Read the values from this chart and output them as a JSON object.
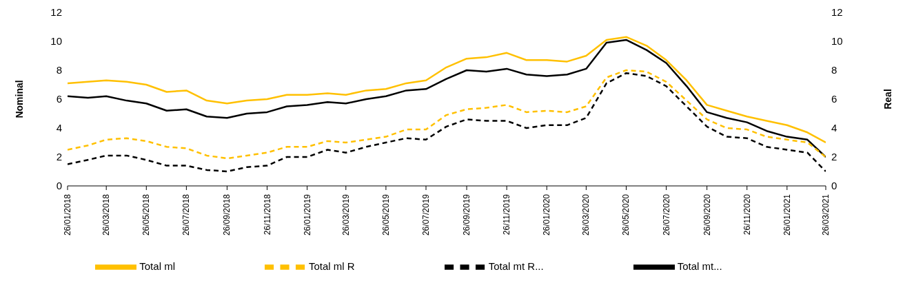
{
  "chart_data": {
    "type": "line",
    "xlabel": null,
    "ylabel": "Nominal",
    "y2label": "Real",
    "x": [
      "2018-01-26",
      "2018-02-26",
      "2018-03-26",
      "2018-04-26",
      "2018-05-26",
      "2018-06-26",
      "2018-07-26",
      "2018-08-26",
      "2018-09-26",
      "2018-10-26",
      "2018-11-26",
      "2018-12-26",
      "2019-01-26",
      "2019-02-26",
      "2019-03-26",
      "2019-04-26",
      "2019-05-26",
      "2019-06-26",
      "2019-07-26",
      "2019-08-26",
      "2019-09-26",
      "2019-10-26",
      "2019-11-26",
      "2019-12-26",
      "2020-01-26",
      "2020-02-26",
      "2020-03-26",
      "2020-04-26",
      "2020-05-26",
      "2020-06-26",
      "2020-07-26",
      "2020-08-26",
      "2020-09-26",
      "2020-10-26",
      "2020-11-26",
      "2020-12-26",
      "2021-01-26",
      "2021-02-26",
      "2021-03-26"
    ],
    "series": [
      {
        "name": "Total ml",
        "color": "#ffc000",
        "line_style": "solid",
        "values": [
          7.1,
          7.2,
          7.3,
          7.2,
          7.0,
          6.5,
          6.6,
          5.9,
          5.7,
          5.9,
          6.0,
          6.3,
          6.3,
          6.4,
          6.3,
          6.6,
          6.7,
          7.1,
          7.3,
          8.2,
          8.8,
          8.9,
          9.2,
          8.7,
          8.7,
          8.6,
          9.0,
          10.1,
          10.3,
          9.7,
          8.7,
          7.3,
          5.6,
          5.2,
          4.8,
          4.5,
          4.2,
          3.7,
          3.0
        ]
      },
      {
        "name": "Total mt...",
        "color": "#000000",
        "line_style": "solid",
        "values": [
          6.2,
          6.1,
          6.2,
          5.9,
          5.7,
          5.2,
          5.3,
          4.8,
          4.7,
          5.0,
          5.1,
          5.5,
          5.6,
          5.8,
          5.7,
          6.0,
          6.2,
          6.6,
          6.7,
          7.4,
          8.0,
          7.9,
          8.1,
          7.7,
          7.6,
          7.7,
          8.1,
          9.9,
          10.1,
          9.4,
          8.5,
          6.9,
          5.1,
          4.7,
          4.4,
          3.8,
          3.4,
          3.2,
          2.0
        ]
      },
      {
        "name": "Total ml R",
        "color": "#ffc000",
        "line_style": "dashed",
        "values": [
          2.5,
          2.8,
          3.2,
          3.3,
          3.1,
          2.7,
          2.6,
          2.1,
          1.9,
          2.1,
          2.3,
          2.7,
          2.7,
          3.1,
          3.0,
          3.2,
          3.4,
          3.9,
          3.9,
          4.9,
          5.3,
          5.4,
          5.6,
          5.1,
          5.2,
          5.1,
          5.5,
          7.5,
          8.0,
          7.9,
          7.2,
          5.9,
          4.6,
          4.0,
          3.9,
          3.4,
          3.2,
          3.0,
          2.0
        ]
      },
      {
        "name": "Total mt R...",
        "color": "#000000",
        "line_style": "dashed",
        "values": [
          1.5,
          1.8,
          2.1,
          2.1,
          1.8,
          1.4,
          1.4,
          1.1,
          1.0,
          1.3,
          1.4,
          2.0,
          2.0,
          2.5,
          2.3,
          2.7,
          3.0,
          3.3,
          3.2,
          4.1,
          4.6,
          4.5,
          4.5,
          4.0,
          4.2,
          4.2,
          4.7,
          7.1,
          7.8,
          7.6,
          6.9,
          5.5,
          4.1,
          3.4,
          3.3,
          2.7,
          2.5,
          2.3,
          1.0
        ]
      }
    ],
    "xlim": [
      "2018-01-26",
      "2021-03-26"
    ],
    "xticks": [
      {
        "value": "2018-01-26",
        "label": "26/01/2018"
      },
      {
        "value": "2018-03-26",
        "label": "26/03/2018"
      },
      {
        "value": "2018-05-26",
        "label": "26/05/2018"
      },
      {
        "value": "2018-07-26",
        "label": "26/07/2018"
      },
      {
        "value": "2018-09-26",
        "label": "26/09/2018"
      },
      {
        "value": "2018-11-26",
        "label": "26/11/2018"
      },
      {
        "value": "2019-01-26",
        "label": "26/01/2019"
      },
      {
        "value": "2019-03-26",
        "label": "26/03/2019"
      },
      {
        "value": "2019-05-26",
        "label": "26/05/2019"
      },
      {
        "value": "2019-07-26",
        "label": "26/07/2019"
      },
      {
        "value": "2019-09-26",
        "label": "26/09/2019"
      },
      {
        "value": "2019-11-26",
        "label": "26/11/2019"
      },
      {
        "value": "2020-01-26",
        "label": "26/01/2020"
      },
      {
        "value": "2020-03-26",
        "label": "26/03/2020"
      },
      {
        "value": "2020-05-26",
        "label": "26/05/2020"
      },
      {
        "value": "2020-07-26",
        "label": "26/07/2020"
      },
      {
        "value": "2020-09-26",
        "label": "26/09/2020"
      },
      {
        "value": "2020-11-26",
        "label": "26/11/2020"
      },
      {
        "value": "2021-01-26",
        "label": "26/01/2021"
      },
      {
        "value": "2021-03-26",
        "label": "26/03/2021"
      }
    ],
    "ylim": [
      0,
      12
    ],
    "yticks": [
      0,
      2,
      4,
      6,
      8,
      10,
      12
    ],
    "y2lim": [
      0,
      12
    ],
    "y2ticks": [
      0,
      2,
      4,
      6,
      8,
      10,
      12
    ],
    "grid": false,
    "legend": "bottom",
    "marker": "none"
  }
}
